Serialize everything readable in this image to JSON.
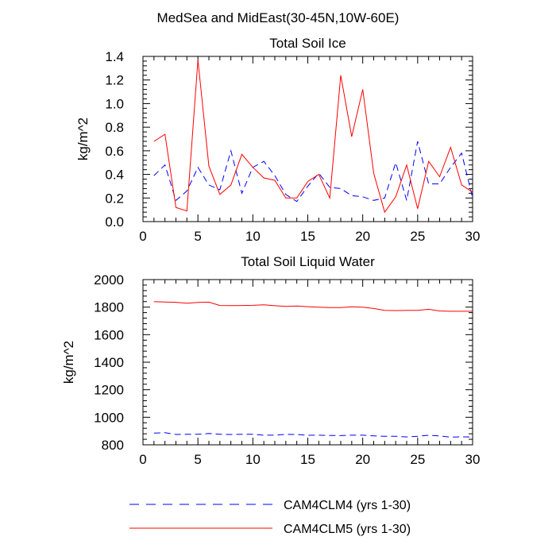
{
  "page_title": "MedSea and MidEast(30-45N,10W-60E)",
  "colors": {
    "cam4clm4": "#0000ff",
    "cam4clm5": "#ff0000",
    "axis": "#000000"
  },
  "legend": [
    {
      "label": "CAM4CLM4 (yrs 1-30)",
      "style": "dashed",
      "color_key": "cam4clm4"
    },
    {
      "label": "CAM4CLM5 (yrs 1-30)",
      "style": "solid",
      "color_key": "cam4clm5"
    }
  ],
  "chart_data": [
    {
      "type": "line",
      "title": "Total Soil Ice",
      "xlabel": "",
      "ylabel": "kg/m^2",
      "xlim": [
        0,
        30
      ],
      "ylim": [
        0,
        1.4
      ],
      "xticks": [
        0,
        5,
        10,
        15,
        20,
        25,
        30
      ],
      "yticks": [
        0.0,
        0.2,
        0.4,
        0.6,
        0.8,
        1.0,
        1.2,
        1.4
      ],
      "ytick_labels": [
        "0.0",
        "0.2",
        "0.4",
        "0.6",
        "0.8",
        "1.0",
        "1.2",
        "1.4"
      ],
      "x": [
        1,
        2,
        3,
        4,
        5,
        6,
        7,
        8,
        9,
        10,
        11,
        12,
        13,
        14,
        15,
        16,
        17,
        18,
        19,
        20,
        21,
        22,
        23,
        24,
        25,
        26,
        27,
        28,
        29,
        30
      ],
      "series": [
        {
          "name": "CAM4CLM4 (yrs 1-30)",
          "color_key": "cam4clm4",
          "style": "dashed",
          "values": [
            0.39,
            0.48,
            0.18,
            0.26,
            0.46,
            0.31,
            0.27,
            0.6,
            0.24,
            0.46,
            0.51,
            0.39,
            0.23,
            0.17,
            0.3,
            0.41,
            0.29,
            0.28,
            0.22,
            0.21,
            0.18,
            0.2,
            0.5,
            0.18,
            0.68,
            0.32,
            0.32,
            0.46,
            0.58,
            0.2
          ]
        },
        {
          "name": "CAM4CLM5 (yrs 1-30)",
          "color_key": "cam4clm5",
          "style": "solid",
          "values": [
            0.68,
            0.74,
            0.12,
            0.09,
            1.37,
            0.47,
            0.23,
            0.31,
            0.57,
            0.46,
            0.37,
            0.35,
            0.2,
            0.2,
            0.34,
            0.4,
            0.2,
            1.24,
            0.72,
            1.12,
            0.41,
            0.08,
            0.21,
            0.48,
            0.11,
            0.51,
            0.38,
            0.63,
            0.31,
            0.25
          ]
        }
      ]
    },
    {
      "type": "line",
      "title": "Total Soil Liquid Water",
      "xlabel": "",
      "ylabel": "kg/m^2",
      "xlim": [
        0,
        30
      ],
      "ylim": [
        800,
        2000
      ],
      "xticks": [
        0,
        5,
        10,
        15,
        20,
        25,
        30
      ],
      "yticks": [
        800,
        1000,
        1200,
        1400,
        1600,
        1800,
        2000
      ],
      "ytick_labels": [
        "800",
        "1000",
        "1200",
        "1400",
        "1600",
        "1800",
        "2000"
      ],
      "x": [
        1,
        2,
        3,
        4,
        5,
        6,
        7,
        8,
        9,
        10,
        11,
        12,
        13,
        14,
        15,
        16,
        17,
        18,
        19,
        20,
        21,
        22,
        23,
        24,
        25,
        26,
        27,
        28,
        29,
        30
      ],
      "series": [
        {
          "name": "CAM4CLM4 (yrs 1-30)",
          "color_key": "cam4clm4",
          "style": "dashed",
          "values": [
            885,
            888,
            875,
            876,
            876,
            882,
            877,
            875,
            876,
            877,
            870,
            870,
            876,
            875,
            869,
            870,
            868,
            867,
            870,
            870,
            865,
            862,
            862,
            857,
            862,
            870,
            864,
            856,
            858,
            856
          ]
        },
        {
          "name": "CAM4CLM5 (yrs 1-30)",
          "color_key": "cam4clm5",
          "style": "solid",
          "values": [
            1840,
            1837,
            1835,
            1828,
            1834,
            1836,
            1812,
            1811,
            1812,
            1813,
            1817,
            1810,
            1805,
            1808,
            1803,
            1800,
            1797,
            1797,
            1802,
            1800,
            1790,
            1777,
            1775,
            1776,
            1777,
            1784,
            1772,
            1770,
            1770,
            1770
          ]
        }
      ]
    }
  ]
}
